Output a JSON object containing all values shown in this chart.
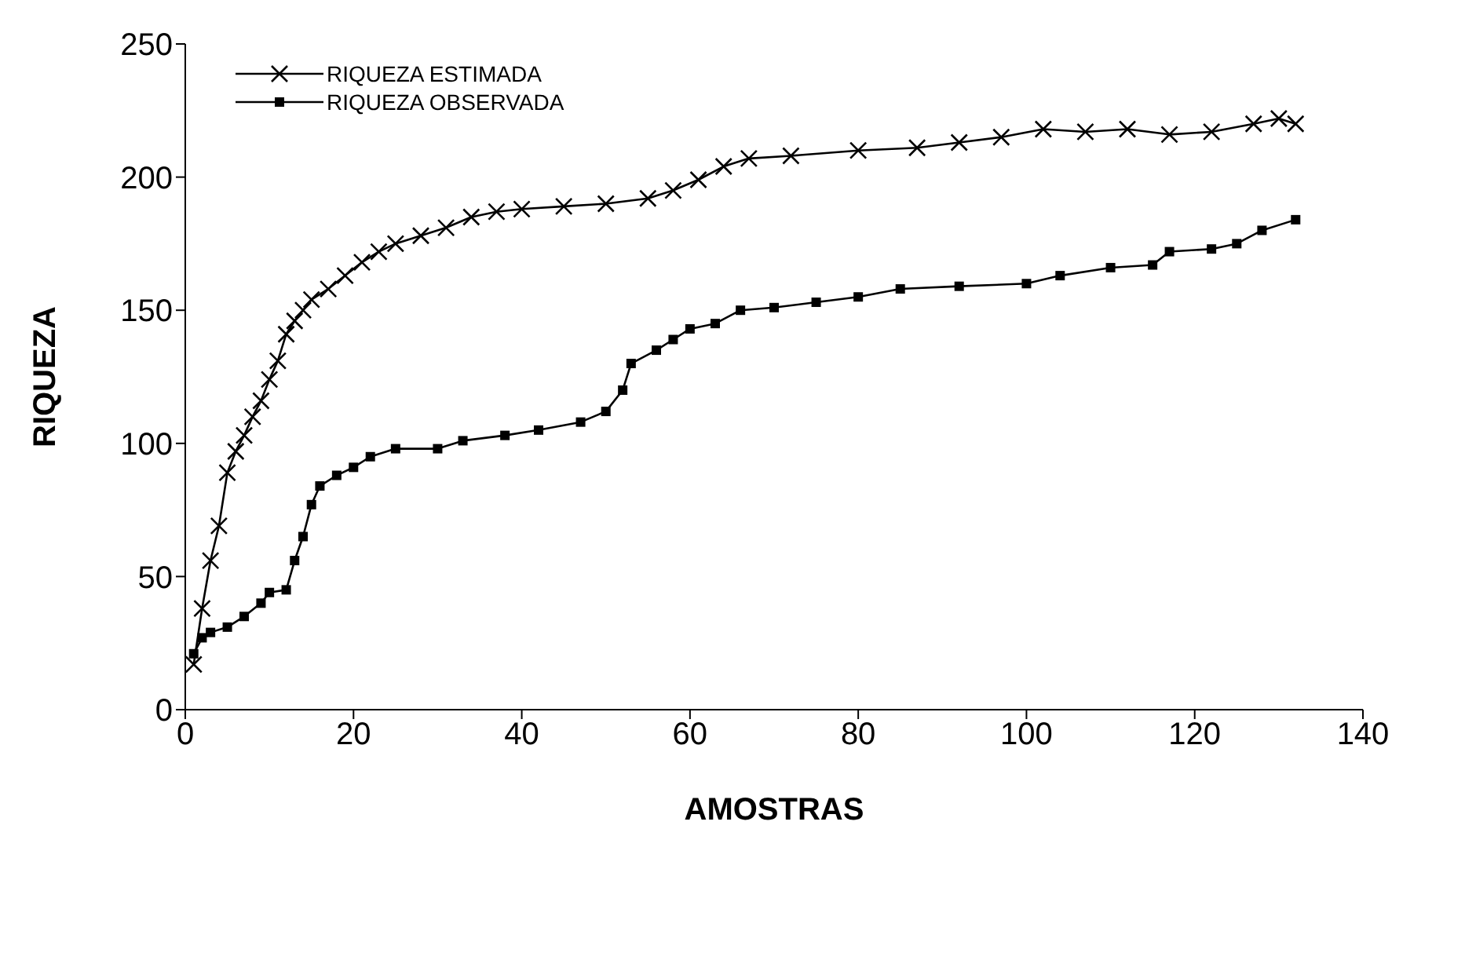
{
  "chart_data": {
    "type": "line",
    "xlabel": "AMOSTRAS",
    "ylabel": "RIQUEZA",
    "xlim": [
      0,
      140
    ],
    "xticks": [
      0,
      20,
      40,
      60,
      80,
      100,
      120,
      140
    ],
    "ylim": [
      0,
      250
    ],
    "yticks": [
      0,
      50,
      100,
      150,
      200,
      250
    ],
    "grid": false,
    "legend": "top left",
    "line_style": "solid",
    "series": [
      {
        "name": "RIQUEZA ESTIMADA",
        "color": "#000000",
        "marker": "cross",
        "x": [
          1,
          2,
          3,
          4,
          5,
          6,
          7,
          8,
          9,
          10,
          11,
          12,
          13,
          14,
          15,
          17,
          19,
          21,
          23,
          25,
          28,
          31,
          34,
          37,
          40,
          45,
          50,
          55,
          58,
          61,
          64,
          67,
          72,
          80,
          87,
          92,
          97,
          102,
          107,
          112,
          117,
          122,
          127,
          130,
          132
        ],
        "values": [
          17,
          38,
          56,
          69,
          89,
          97,
          103,
          110,
          116,
          124,
          131,
          141,
          146,
          150,
          154,
          158,
          163,
          168,
          172,
          175,
          178,
          181,
          185,
          187,
          188,
          189,
          190,
          192,
          195,
          199,
          204,
          207,
          208,
          210,
          211,
          213,
          215,
          218,
          217,
          218,
          216,
          217,
          220,
          222,
          220
        ]
      },
      {
        "name": "RIQUEZA OBSERVADA",
        "color": "#000000",
        "marker": "square",
        "x": [
          1,
          2,
          3,
          5,
          7,
          9,
          10,
          12,
          13,
          14,
          15,
          16,
          18,
          20,
          22,
          25,
          30,
          33,
          38,
          42,
          47,
          50,
          52,
          53,
          56,
          58,
          60,
          63,
          66,
          70,
          75,
          80,
          85,
          92,
          100,
          104,
          110,
          115,
          117,
          122,
          125,
          128,
          132
        ],
        "values": [
          21,
          27,
          29,
          31,
          35,
          40,
          44,
          45,
          56,
          65,
          77,
          84,
          88,
          91,
          95,
          98,
          98,
          101,
          103,
          105,
          108,
          112,
          120,
          130,
          135,
          139,
          143,
          145,
          150,
          151,
          153,
          155,
          158,
          159,
          160,
          163,
          166,
          167,
          172,
          173,
          175,
          180,
          184
        ]
      }
    ]
  }
}
